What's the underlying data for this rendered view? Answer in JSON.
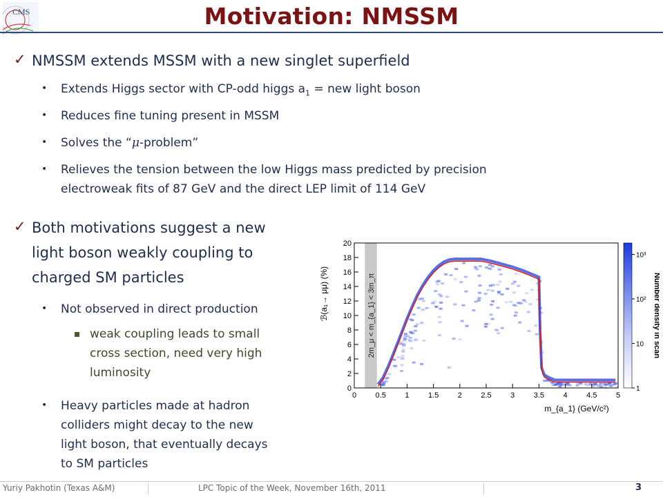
{
  "slide": {
    "title": "Motivation: NMSSM",
    "logo_text": "CMS",
    "section1": {
      "heading": "NMSSM extends MSSM with a new singlet superfield",
      "bullets": [
        {
          "prefix": "Extends Higgs sector with CP-odd higgs a",
          "sub": "1",
          "suffix": " = new light boson"
        },
        {
          "text": "Reduces fine tuning present in MSSM"
        },
        {
          "prefix": "Solves the “",
          "mu": "μ",
          "suffix": "-problem”"
        },
        {
          "line1": "Relieves the tension between the low Higgs mass predicted by precision",
          "line2": "electroweak fits of 87 GeV and the direct LEP limit of 114 GeV"
        }
      ]
    },
    "section2": {
      "heading_lines": [
        "Both motivations suggest a new",
        "light boson weakly coupling to",
        "charged SM particles"
      ],
      "bullet1": "Not observed in direct production",
      "sub_lines": [
        "weak coupling leads to small",
        "cross section, need very high",
        "luminosity"
      ],
      "bullet2_lines": [
        "Heavy particles made at hadron",
        "colliders might decay to the new",
        "light boson, that eventually decays",
        "to SM particles"
      ]
    },
    "footer": {
      "author": "Yuriy Pakhotin (Texas A&M)",
      "event": "LPC Topic of the Week, November 16th, 2011",
      "page": "3"
    }
  },
  "chart_data": {
    "type": "heatmap",
    "xlabel": "m_{a_1} (GeV/c²)",
    "ylabel": "ℬ(a₁→ μμ) (%)",
    "colorbar_label": "Number density in scan",
    "band_label": "2m_μ < m_{a_1} < 3m_π",
    "xlim": [
      0,
      5
    ],
    "ylim": [
      0,
      20
    ],
    "x_ticks": [
      "0",
      "0.5",
      "1",
      "1.5",
      "2",
      "2.5",
      "3",
      "3.5",
      "4",
      "4.5",
      "5"
    ],
    "y_ticks": [
      "0",
      "2",
      "4",
      "6",
      "8",
      "10",
      "12",
      "14",
      "16",
      "18",
      "20"
    ],
    "colorbar_ticks": [
      "1",
      "10",
      "10²",
      "10³"
    ],
    "excluded_band_x": [
      0.2,
      0.43
    ],
    "curve_x": [
      0.45,
      0.55,
      0.65,
      0.75,
      0.9,
      1.0,
      1.1,
      1.2,
      1.3,
      1.4,
      1.5,
      1.6,
      1.7,
      1.8,
      1.9,
      2.0,
      2.1,
      2.2,
      2.4,
      2.6,
      2.8,
      3.0,
      3.2,
      3.4,
      3.5,
      3.52,
      3.55,
      3.6,
      3.7,
      3.8,
      4.0,
      4.4,
      4.8,
      4.95
    ],
    "curve_y": [
      0.2,
      1.2,
      2.8,
      4.6,
      7.4,
      9.3,
      11.0,
      12.6,
      13.9,
      15.0,
      15.9,
      16.6,
      17.1,
      17.4,
      17.5,
      17.5,
      17.5,
      17.5,
      17.5,
      17.2,
      16.8,
      16.4,
      15.9,
      15.3,
      15.0,
      8.0,
      2.5,
      1.5,
      1.1,
      0.8,
      0.8,
      0.8,
      0.8,
      0.8
    ]
  }
}
